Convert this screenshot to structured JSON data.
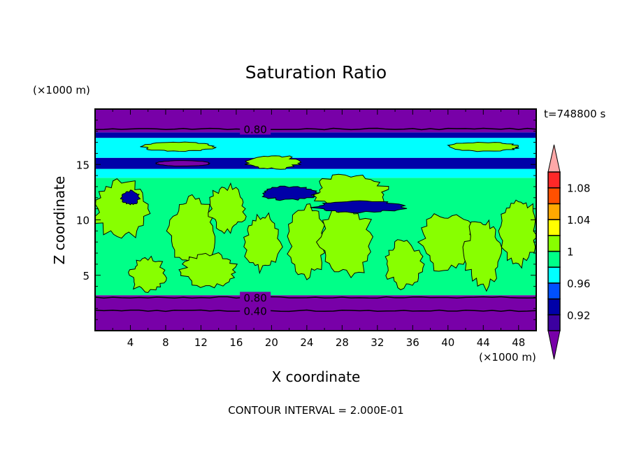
{
  "chart_data": {
    "type": "heatmap",
    "title": "Saturation Ratio",
    "xlabel": "X coordinate",
    "ylabel": "Z coordinate",
    "x_unit": "(×1000 m)",
    "y_unit": "(×1000 m)",
    "xlim": [
      0,
      50
    ],
    "ylim": [
      0,
      20
    ],
    "xticks": [
      4,
      8,
      12,
      16,
      20,
      24,
      28,
      32,
      36,
      40,
      44,
      48
    ],
    "yticks": [
      5,
      10,
      15
    ],
    "time_label": "t=748800 s",
    "footer": "CONTOUR INTERVAL = 2.000E-01",
    "colorbar": {
      "levels": [
        0.9,
        0.92,
        0.94,
        0.96,
        0.98,
        1.0,
        1.02,
        1.04,
        1.06,
        1.08,
        1.1
      ],
      "tick_labels": [
        "0.92",
        "0.96",
        "1",
        "1.04",
        "1.08"
      ],
      "tick_values": [
        0.92,
        0.96,
        1.0,
        1.04,
        1.08
      ],
      "colors": [
        "#7800a8",
        "#3c00a0",
        "#0000a8",
        "#0050ff",
        "#00ffff",
        "#00ff88",
        "#88ff00",
        "#ffff00",
        "#ffa800",
        "#ff5000",
        "#ff2828",
        "#ffa8a8"
      ]
    },
    "layers": [
      {
        "z": [
          0,
          3.2
        ],
        "value": 0.89
      },
      {
        "z": [
          3.2,
          13.8
        ],
        "value": 0.99
      },
      {
        "z": [
          13.8,
          14.6
        ],
        "value": 0.97
      },
      {
        "z": [
          14.6,
          15.6
        ],
        "value": 0.93
      },
      {
        "z": [
          15.6,
          17.4
        ],
        "value": 0.97
      },
      {
        "z": [
          17.4,
          17.9
        ],
        "value": 0.93
      },
      {
        "z": [
          17.9,
          20
        ],
        "value": 0.89
      }
    ],
    "contour_lines": [
      {
        "label": "0.80",
        "z": 18.2,
        "label_x": 18
      },
      {
        "label": "0.80",
        "z": 3.0,
        "label_x": 18
      },
      {
        "label": "0.40",
        "z": 1.8,
        "label_x": 18
      }
    ]
  }
}
